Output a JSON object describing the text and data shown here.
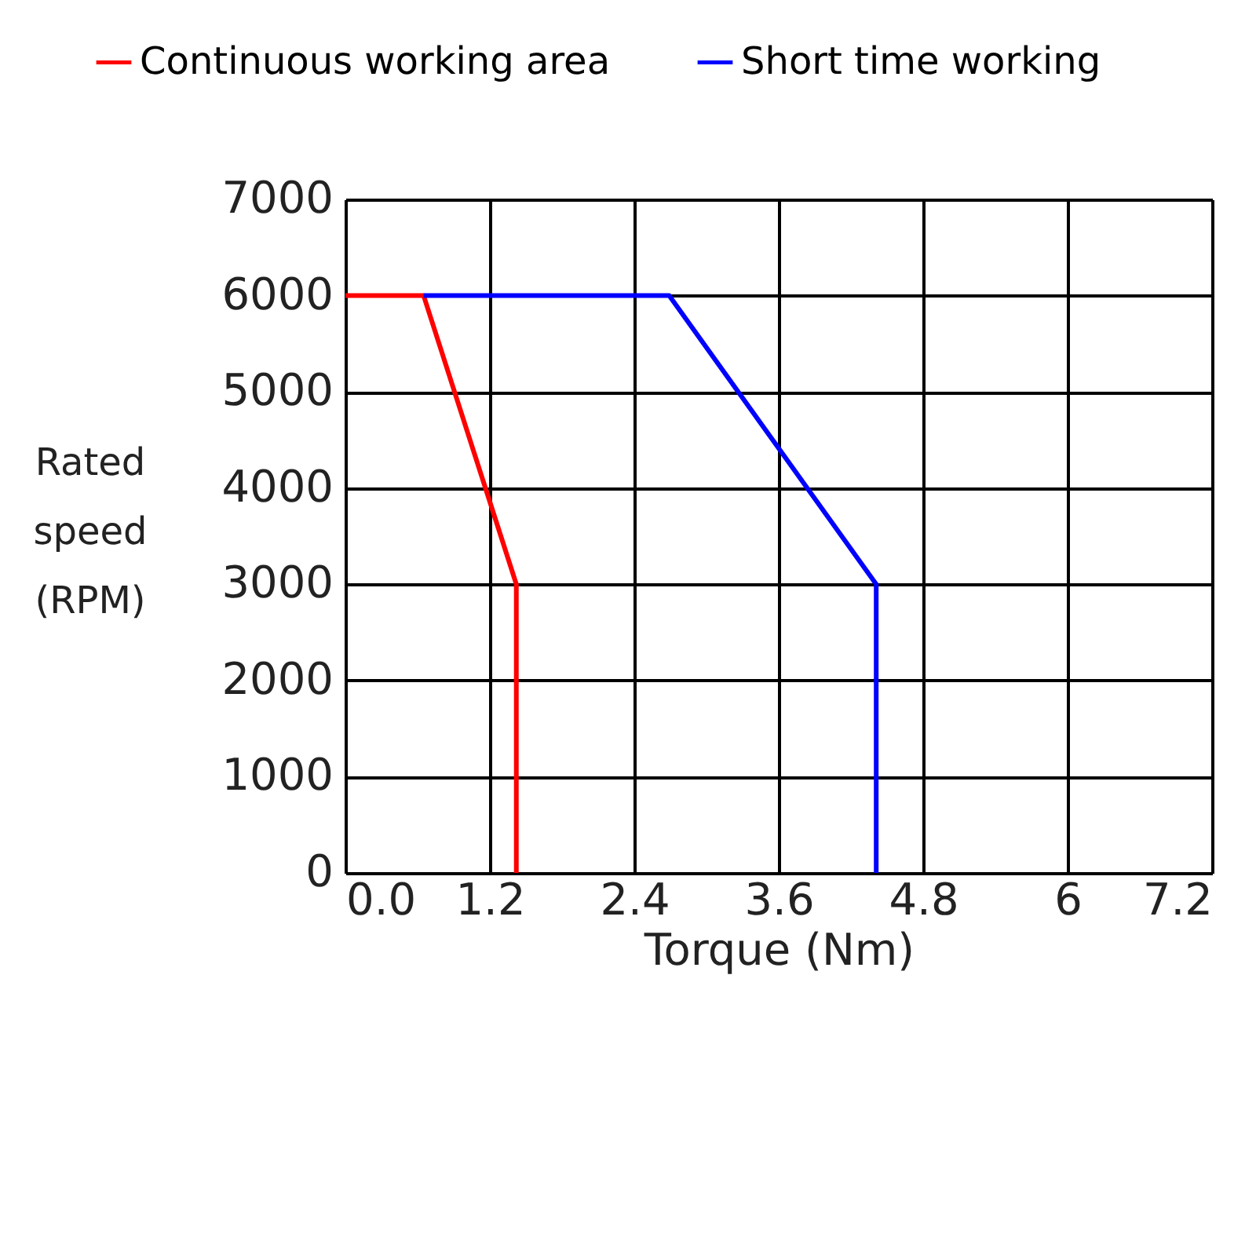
{
  "chart_data": {
    "type": "line",
    "xlabel": "Torque (Nm)",
    "ylabel": "Rated speed (RPM)",
    "series": [
      {
        "name": "Continuous working area",
        "color": "#ff0000",
        "x": [
          0.0,
          0.65,
          1.42,
          1.42
        ],
        "values": [
          6000,
          6000,
          3000,
          0
        ]
      },
      {
        "name": "Short time working",
        "color": "#0000ff",
        "x": [
          0.65,
          2.69,
          4.41,
          4.41
        ],
        "values": [
          6000,
          6000,
          3000,
          0
        ]
      }
    ],
    "xlim": [
      0,
      7.2
    ],
    "xticks": [
      {
        "value": 0,
        "label": "0.0"
      },
      1.2,
      2.4,
      3.6,
      4.8,
      {
        "value": 6,
        "label": "6"
      },
      7.2
    ],
    "ylim": [
      0,
      7000
    ],
    "yticks": [
      0,
      1000,
      2000,
      3000,
      4000,
      5000,
      6000,
      7000
    ],
    "grid": true,
    "legend": "top",
    "marker": "none",
    "line_style": "solid"
  }
}
